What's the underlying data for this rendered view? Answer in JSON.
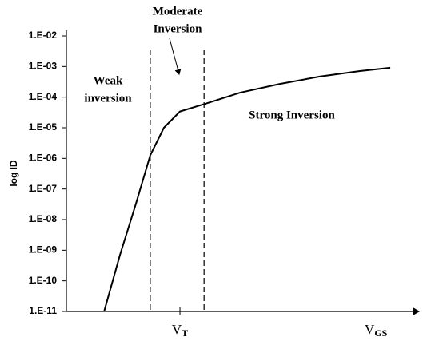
{
  "chart_data": {
    "type": "line",
    "ylabel": "log ID",
    "log_y": true,
    "xlim": [
      0,
      10
    ],
    "ylim": [
      1e-11,
      0.01
    ],
    "yticks": [
      {
        "value": 0.01,
        "label": "1.E-02"
      },
      {
        "value": 0.001,
        "label": "1.E-03"
      },
      {
        "value": 0.0001,
        "label": "1.E-04"
      },
      {
        "value": 1e-05,
        "label": "1.E-05"
      },
      {
        "value": 1e-06,
        "label": "1.E-06"
      },
      {
        "value": 1e-07,
        "label": "1.E-07"
      },
      {
        "value": 1e-08,
        "label": "1.E-08"
      },
      {
        "value": 1e-09,
        "label": "1.E-09"
      },
      {
        "value": 1e-10,
        "label": "1.E-10"
      },
      {
        "value": 1e-11,
        "label": "1.E-11"
      }
    ],
    "xticks": [
      {
        "value": 3.25,
        "label": "V",
        "sub": "T"
      }
    ],
    "xlabel": {
      "value": 8.86,
      "label": "V",
      "sub": "GS"
    },
    "vlines": [
      2.4,
      3.94
    ],
    "series": [
      {
        "color": "#000000",
        "x": [
          1.08,
          1.53,
          1.99,
          2.4,
          2.79,
          3.25,
          3.94,
          4.97,
          6.11,
          7.25,
          8.4,
          9.27
        ],
        "values": [
          1e-11,
          6.8e-10,
          3.3e-08,
          1.26e-06,
          1e-05,
          3.4e-05,
          5.9e-05,
          0.00014,
          0.00027,
          0.00047,
          0.00071,
          0.00091
        ]
      }
    ],
    "annotations": [
      {
        "lines": [
          "Moderate",
          "Inversion"
        ],
        "x": 222,
        "y": 15
      },
      {
        "lines": [
          "Weak",
          "inversion"
        ],
        "x": 135,
        "y": 102
      },
      {
        "lines": [
          "Strong Inversion"
        ],
        "x": 365,
        "y": 145
      }
    ]
  }
}
